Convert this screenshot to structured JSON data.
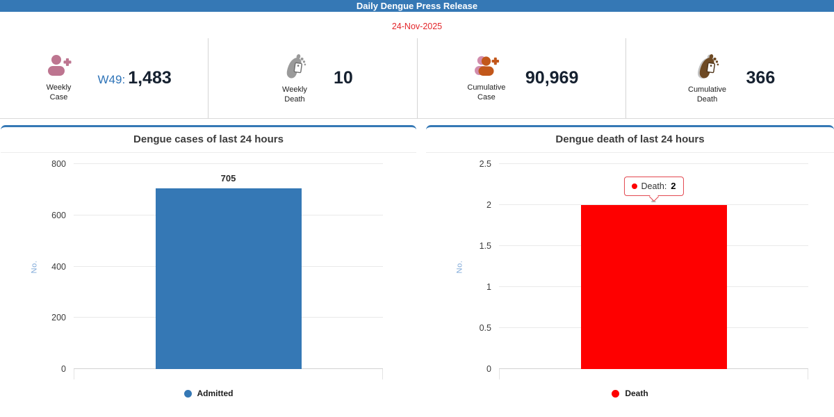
{
  "header": {
    "title": "Daily Dengue Press Release",
    "date": "24-Nov-2025"
  },
  "colors": {
    "header_blue": "#3578b5",
    "date_red": "#e3252a",
    "admitted_blue": "#3578b5",
    "death_red": "#fe0000",
    "week_prefix_blue": "#2f74b8"
  },
  "stats": {
    "cards": [
      {
        "icon": "person-add-icon",
        "label": "Weekly Case",
        "prefix": "W49:",
        "value": "1,483"
      },
      {
        "icon": "foot-tag-icon",
        "label": "Weekly Death",
        "prefix": "",
        "value": "10"
      },
      {
        "icon": "people-add-icon",
        "label": "Cumulative Case",
        "prefix": "",
        "value": "90,969"
      },
      {
        "icon": "foot-tag-icon",
        "label": "Cumulative Death",
        "prefix": "",
        "value": "366"
      }
    ]
  },
  "chart_data": [
    {
      "type": "bar",
      "title": "Dengue cases of last 24 hours",
      "categories": [
        "Admitted"
      ],
      "values": [
        705
      ],
      "data_label": "705",
      "xlabel": "",
      "ylabel": "No.",
      "ylim": [
        0,
        800
      ],
      "yticks": [
        0,
        200,
        400,
        600,
        800
      ],
      "grid": true,
      "bar_color": "#3578b5",
      "legend_position": "bottom",
      "legend": [
        {
          "label": "Admitted",
          "color": "#3578b5"
        }
      ]
    },
    {
      "type": "bar",
      "title": "Dengue death of last 24 hours",
      "categories": [
        "Death"
      ],
      "values": [
        2
      ],
      "data_label": "2",
      "xlabel": "",
      "ylabel": "No.",
      "ylim": [
        0,
        2.5
      ],
      "yticks": [
        0,
        0.5,
        1,
        1.5,
        2,
        2.5
      ],
      "grid": true,
      "bar_color": "#fe0000",
      "legend_position": "bottom",
      "legend": [
        {
          "label": "Death",
          "color": "#fe0000"
        }
      ],
      "tooltip": {
        "label_text": "Death:",
        "value": "2",
        "border_color": "#e34850",
        "dot_color": "#fe0000"
      }
    }
  ]
}
